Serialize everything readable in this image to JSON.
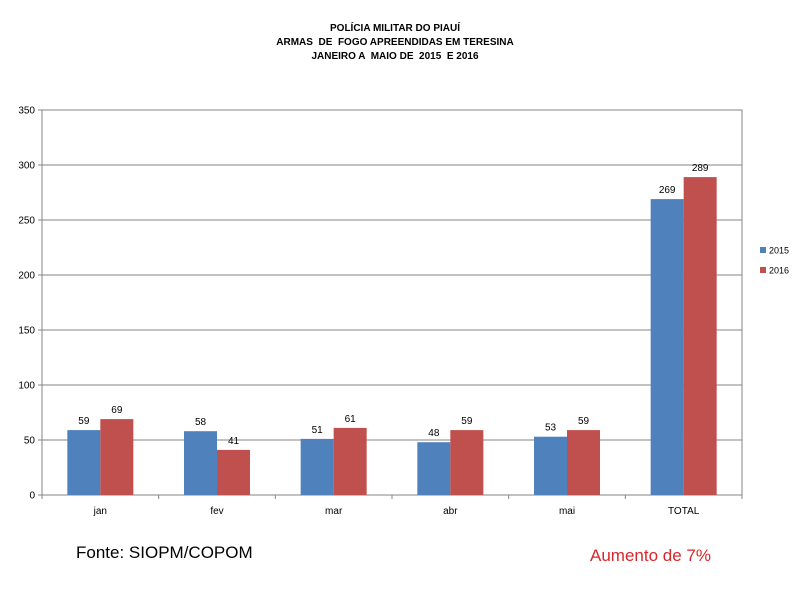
{
  "title_lines": [
    "POLÍCIA MILITAR DO PIAUÍ",
    "ARMAS  DE  FOGO APREENDIDAS EM TERESINA",
    "JANEIRO A  MAIO DE  2015  E 2016"
  ],
  "chart_data": {
    "type": "bar",
    "title": "POLÍCIA MILITAR DO PIAUÍ / ARMAS  DE  FOGO APREENDIDAS EM TERESINA / JANEIRO A  MAIO DE  2015  E 2016",
    "categories": [
      "jan",
      "fev",
      "mar",
      "abr",
      "mai",
      "TOTAL"
    ],
    "series": [
      {
        "name": "2015",
        "color": "#4f81bd",
        "values": [
          59,
          58,
          51,
          48,
          53,
          269
        ]
      },
      {
        "name": "2016",
        "color": "#c0504d",
        "values": [
          69,
          41,
          61,
          59,
          59,
          289
        ]
      }
    ],
    "xlabel": "",
    "ylabel": "",
    "ylim": [
      0,
      350
    ],
    "yticks": [
      0,
      50,
      100,
      150,
      200,
      250,
      300,
      350
    ],
    "grid": true,
    "legend_position": "right"
  },
  "footer": {
    "source": "Fonte: SIOPM/COPOM",
    "note": "Aumento de 7%",
    "note_color": "#d9262a"
  }
}
